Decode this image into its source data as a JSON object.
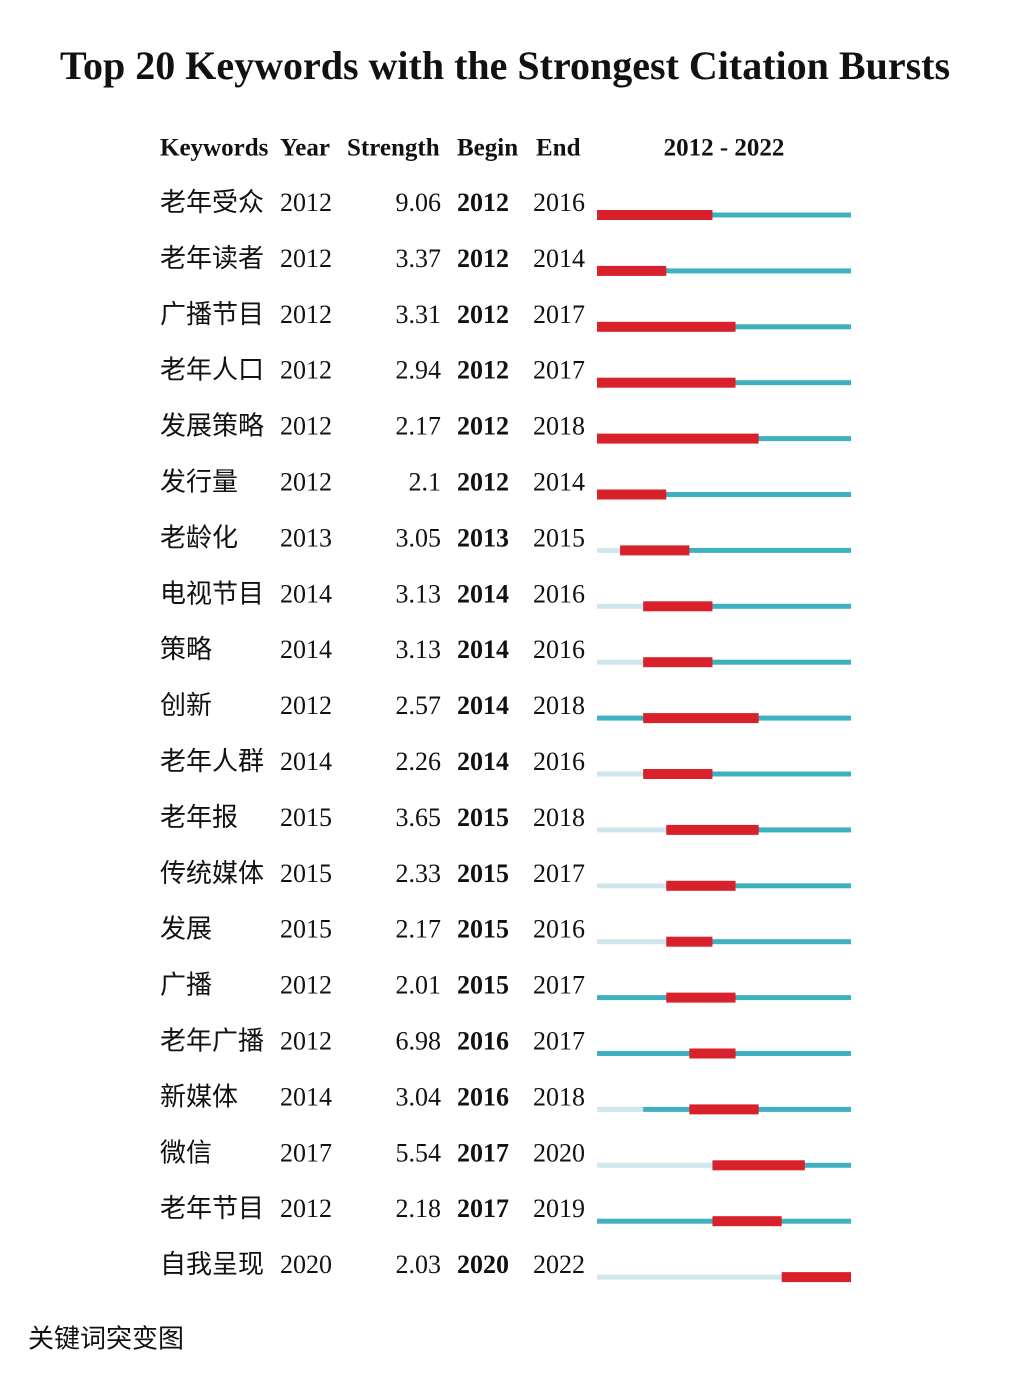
{
  "title": "Top 20 Keywords with the Strongest Citation Bursts",
  "columns": [
    "Keywords",
    "Year",
    "Strength",
    "Begin",
    "End"
  ],
  "timeline": {
    "label": "2012 - 2022",
    "range": [
      2012,
      2022
    ]
  },
  "rows": [
    {
      "keyword": "老年受众",
      "year": 2012,
      "strength": 9.06,
      "begin": 2012,
      "end": 2016
    },
    {
      "keyword": "老年读者",
      "year": 2012,
      "strength": 3.37,
      "begin": 2012,
      "end": 2014
    },
    {
      "keyword": "广播节目",
      "year": 2012,
      "strength": 3.31,
      "begin": 2012,
      "end": 2017
    },
    {
      "keyword": "老年人口",
      "year": 2012,
      "strength": 2.94,
      "begin": 2012,
      "end": 2017
    },
    {
      "keyword": "发展策略",
      "year": 2012,
      "strength": 2.17,
      "begin": 2012,
      "end": 2018
    },
    {
      "keyword": "发行量",
      "year": 2012,
      "strength": 2.1,
      "begin": 2012,
      "end": 2014
    },
    {
      "keyword": "老龄化",
      "year": 2013,
      "strength": 3.05,
      "begin": 2013,
      "end": 2015
    },
    {
      "keyword": "电视节目",
      "year": 2014,
      "strength": 3.13,
      "begin": 2014,
      "end": 2016
    },
    {
      "keyword": "策略",
      "year": 2014,
      "strength": 3.13,
      "begin": 2014,
      "end": 2016
    },
    {
      "keyword": "创新",
      "year": 2012,
      "strength": 2.57,
      "begin": 2014,
      "end": 2018
    },
    {
      "keyword": "老年人群",
      "year": 2014,
      "strength": 2.26,
      "begin": 2014,
      "end": 2016
    },
    {
      "keyword": "老年报",
      "year": 2015,
      "strength": 3.65,
      "begin": 2015,
      "end": 2018
    },
    {
      "keyword": "传统媒体",
      "year": 2015,
      "strength": 2.33,
      "begin": 2015,
      "end": 2017
    },
    {
      "keyword": "发展",
      "year": 2015,
      "strength": 2.17,
      "begin": 2015,
      "end": 2016
    },
    {
      "keyword": "广播",
      "year": 2012,
      "strength": 2.01,
      "begin": 2015,
      "end": 2017
    },
    {
      "keyword": "老年广播",
      "year": 2012,
      "strength": 6.98,
      "begin": 2016,
      "end": 2017
    },
    {
      "keyword": "新媒体",
      "year": 2014,
      "strength": 3.04,
      "begin": 2016,
      "end": 2018
    },
    {
      "keyword": "微信",
      "year": 2017,
      "strength": 5.54,
      "begin": 2017,
      "end": 2020
    },
    {
      "keyword": "老年节目",
      "year": 2012,
      "strength": 2.18,
      "begin": 2017,
      "end": 2019
    },
    {
      "keyword": "自我呈现",
      "year": 2020,
      "strength": 2.03,
      "begin": 2020,
      "end": 2022
    }
  ],
  "caption": "关键词突变图"
}
